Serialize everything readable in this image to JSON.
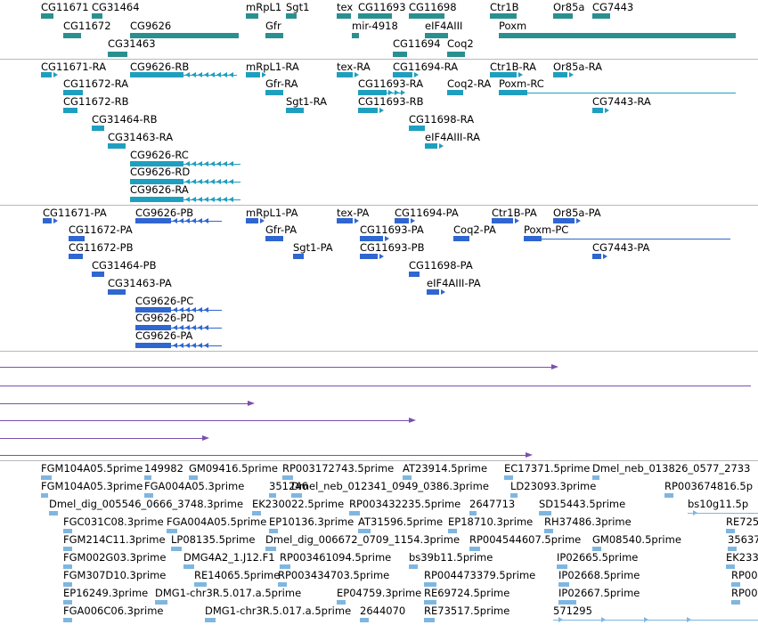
{
  "colors": {
    "gene": "#2a8f8f",
    "transcript": "#1f9fbf",
    "protein": "#2f66d0",
    "segment": "#7b4fb0",
    "est": "#7fb6e0",
    "separator": "#b9b9b9"
  },
  "gene_track": {
    "labels": [
      "CG11671",
      "CG31464",
      "mRpL1",
      "Sgt1",
      "tex",
      "CG11693",
      "CG11698",
      "Ctr1B",
      "Or85a",
      "CG7443",
      "CG11672",
      "CG9626",
      "Gfr",
      "mir-4918",
      "eIF4AIII",
      "Poxm",
      "CG31463",
      "CG11694",
      "Coq2"
    ]
  },
  "transcript_track": {
    "labels": [
      "CG11671-RA",
      "CG9626-RB",
      "mRpL1-RA",
      "tex-RA",
      "CG11694-RA",
      "Ctr1B-RA",
      "Or85a-RA",
      "CG11672-RA",
      "Gfr-RA",
      "CG11693-RA",
      "Coq2-RA",
      "Poxm-RC",
      "CG11672-RB",
      "Sgt1-RA",
      "CG11693-RB",
      "CG7443-RA",
      "CG31464-RB",
      "CG11698-RA",
      "CG31463-RA",
      "eIF4AIII-RA",
      "CG9626-RC",
      "CG9626-RD",
      "CG9626-RA"
    ]
  },
  "protein_track": {
    "labels": [
      "CG11671-PA",
      "CG9626-PB",
      "mRpL1-PA",
      "tex-PA",
      "CG11694-PA",
      "Ctr1B-PA",
      "Or85a-PA",
      "CG11672-PA",
      "Gfr-PA",
      "CG11693-PA",
      "Coq2-PA",
      "Poxm-PC",
      "CG11672-PB",
      "Sgt1-PA",
      "CG11693-PB",
      "CG7443-PA",
      "CG31464-PB",
      "CG11698-PA",
      "CG31463-PA",
      "eIF4AIII-PA",
      "CG9626-PC",
      "CG9626-PD",
      "CG9626-PA"
    ]
  },
  "est_track": {
    "labels": [
      "FGM104A05.5prime",
      "149982",
      "GM09416.5prime",
      "RP003172743.5prime",
      "AT23914.5prime",
      "EC17371.5prime",
      "Dmel_neb_013826_0577_2733",
      "FGM104A05.3prime",
      "FGA004A05.3prime",
      "351246",
      "Dmel_neb_012341_0949_0386.3prime",
      "LD23093.3prime",
      "RP003674816.5p",
      "Dmel_dig_005546_0666_3748.3prime",
      "EK230022.5prime",
      "RP003432235.5prime",
      "2647713",
      "SD15443.5prime",
      "bs10g11.5p",
      "FGC031C08.3prime",
      "FGA004A05.5prime",
      "EP10136.3prime",
      "AT31596.5prime",
      "EP18710.3prime",
      "RH37486.3prime",
      "RE725",
      "FGM214C11.3prime",
      "LP08135.5prime",
      "Dmel_dig_006672_0709_1154.3prime",
      "RP004544607.5prime",
      "GM08540.5prime",
      "35637",
      "FGM002G03.3prime",
      "DMG4A2_1.J12.F1",
      "RP003461094.5prime",
      "bs39b11.5prime",
      "IP02665.5prime",
      "EK233",
      "FGM307D10.3prime",
      "RE14065.5prime",
      "RP003434703.5prime",
      "RP004473379.5prime",
      "IP02668.5prime",
      "RP00",
      "EP16249.3prime",
      "DMG1-chr3R.5.017.a.5prime",
      "EP04759.3prime",
      "RE69724.5prime",
      "IP02667.5prime",
      "RP00",
      "FGA006C06.3prime",
      "DMG1-chr3R.5.017.a.5prime",
      "2644070",
      "RE73517.5prime",
      "571295"
    ]
  }
}
